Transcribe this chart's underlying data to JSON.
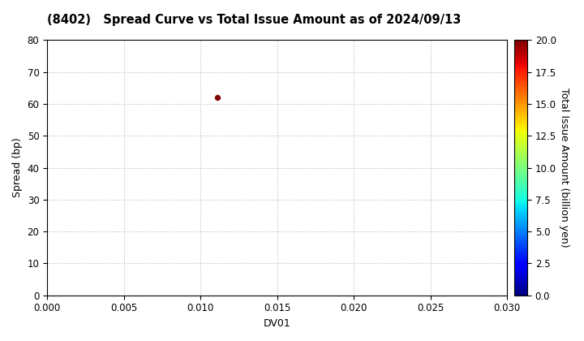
{
  "title": "(8402)   Spread Curve vs Total Issue Amount as of 2024/09/13",
  "xlabel": "DV01",
  "ylabel": "Spread (bp)",
  "colorbar_label": "Total Issue Amount (billion yen)",
  "xlim": [
    0.0,
    0.03
  ],
  "ylim": [
    0,
    80
  ],
  "xticks": [
    0.0,
    0.005,
    0.01,
    0.015,
    0.02,
    0.025,
    0.03
  ],
  "yticks": [
    0,
    10,
    20,
    30,
    40,
    50,
    60,
    70,
    80
  ],
  "colorbar_ticks": [
    0.0,
    2.5,
    5.0,
    7.5,
    10.0,
    12.5,
    15.0,
    17.5,
    20.0
  ],
  "clim": [
    0,
    20
  ],
  "scatter_x": [
    0.0111
  ],
  "scatter_y": [
    62
  ],
  "scatter_color": [
    20.0
  ],
  "scatter_size": 18,
  "background_color": "#ffffff",
  "grid_color": "#bbbbbb",
  "title_fontsize": 10.5,
  "axis_fontsize": 9,
  "tick_fontsize": 8.5
}
